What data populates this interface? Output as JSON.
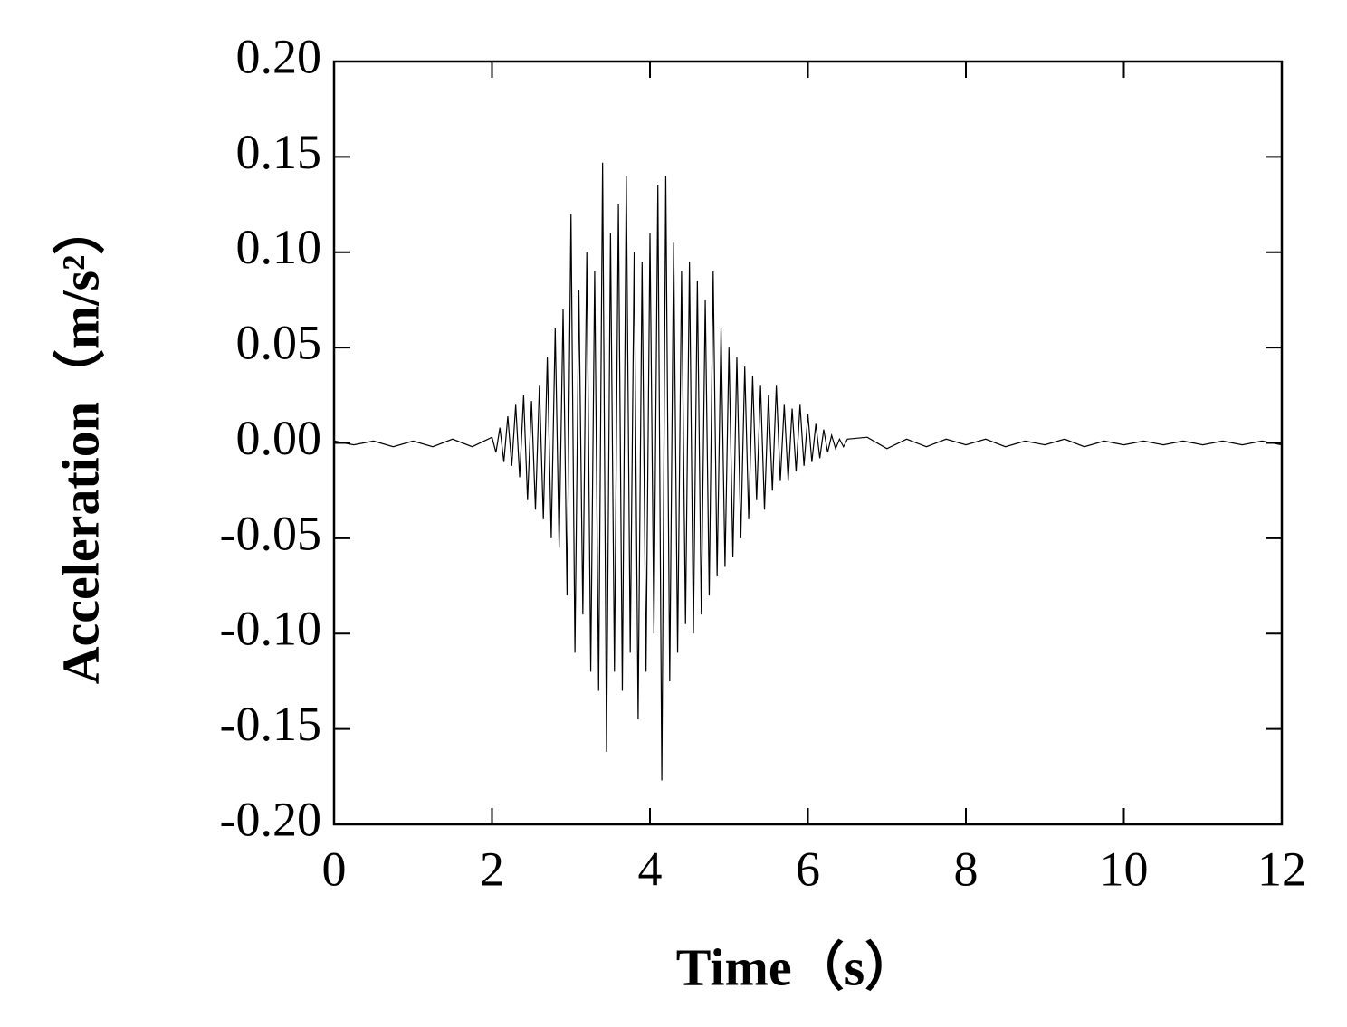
{
  "chart_data": {
    "type": "line",
    "xlabel": "Time（s）",
    "ylabel": "Acceleration（m/s²）",
    "x": [
      0,
      0.25,
      0.5,
      0.75,
      1,
      1.25,
      1.5,
      1.75,
      2,
      2.05,
      2.1,
      2.15,
      2.2,
      2.25,
      2.3,
      2.35,
      2.4,
      2.45,
      2.5,
      2.55,
      2.6,
      2.65,
      2.7,
      2.75,
      2.8,
      2.85,
      2.9,
      2.95,
      3,
      3.05,
      3.1,
      3.15,
      3.2,
      3.25,
      3.3,
      3.35,
      3.4,
      3.45,
      3.5,
      3.55,
      3.6,
      3.65,
      3.7,
      3.75,
      3.8,
      3.85,
      3.9,
      3.95,
      4,
      4.05,
      4.1,
      4.15,
      4.2,
      4.25,
      4.3,
      4.35,
      4.4,
      4.45,
      4.5,
      4.55,
      4.6,
      4.65,
      4.7,
      4.75,
      4.8,
      4.85,
      4.9,
      4.95,
      5,
      5.05,
      5.1,
      5.15,
      5.2,
      5.25,
      5.3,
      5.35,
      5.4,
      5.45,
      5.5,
      5.55,
      5.6,
      5.65,
      5.7,
      5.75,
      5.8,
      5.85,
      5.9,
      5.95,
      6,
      6.05,
      6.1,
      6.15,
      6.2,
      6.25,
      6.3,
      6.35,
      6.4,
      6.45,
      6.5,
      6.75,
      7,
      7.25,
      7.5,
      7.75,
      8,
      8.25,
      8.5,
      8.75,
      9,
      9.25,
      9.5,
      9.75,
      10,
      10.25,
      10.5,
      10.75,
      11,
      11.25,
      11.5,
      11.75,
      12
    ],
    "series": [
      {
        "color": "#000000",
        "values": [
          0.001,
          -0.001,
          0.001,
          -0.002,
          0.001,
          -0.002,
          0.002,
          -0.002,
          0.003,
          -0.005,
          0.008,
          -0.01,
          0.014,
          -0.012,
          0.02,
          -0.018,
          0.025,
          -0.03,
          0.022,
          -0.035,
          0.03,
          -0.04,
          0.045,
          -0.05,
          0.06,
          -0.055,
          0.07,
          -0.08,
          0.12,
          -0.11,
          0.08,
          -0.09,
          0.1,
          -0.12,
          0.09,
          -0.13,
          0.147,
          -0.162,
          0.11,
          -0.12,
          0.125,
          -0.13,
          0.14,
          -0.11,
          0.1,
          -0.145,
          0.095,
          -0.12,
          0.11,
          -0.1,
          0.135,
          -0.177,
          0.14,
          -0.125,
          0.105,
          -0.11,
          0.09,
          -0.095,
          0.095,
          -0.1,
          0.085,
          -0.09,
          0.075,
          -0.08,
          0.09,
          -0.07,
          0.06,
          -0.065,
          0.05,
          -0.06,
          0.045,
          -0.05,
          0.04,
          -0.04,
          0.035,
          -0.03,
          0.03,
          -0.035,
          0.025,
          -0.025,
          0.03,
          -0.02,
          0.02,
          -0.02,
          0.018,
          -0.015,
          0.02,
          -0.012,
          0.015,
          -0.01,
          0.01,
          -0.008,
          0.007,
          -0.005,
          0.004,
          -0.003,
          0.002,
          -0.002,
          0.002,
          0.003,
          -0.003,
          0.002,
          -0.002,
          0.002,
          -0.001,
          0.002,
          -0.002,
          0.001,
          -0.001,
          0.002,
          -0.002,
          0.001,
          -0.001,
          0.001,
          -0.001,
          0.001,
          -0.001,
          0.001,
          -0.001,
          0.001,
          -0.001
        ]
      }
    ],
    "xlim": [
      0,
      12
    ],
    "xticks": [
      0,
      2,
      4,
      6,
      8,
      10,
      12
    ],
    "ylim": [
      -0.2,
      0.2
    ],
    "yticks": [
      {
        "value": -0.2,
        "label": "-0.20"
      },
      {
        "value": -0.15,
        "label": "-0.15"
      },
      {
        "value": -0.1,
        "label": "-0.10"
      },
      {
        "value": -0.05,
        "label": "-0.05"
      },
      {
        "value": 0,
        "label": "0.00"
      },
      {
        "value": 0.05,
        "label": "0.05"
      },
      {
        "value": 0.1,
        "label": "0.10"
      },
      {
        "value": 0.15,
        "label": "0.15"
      },
      {
        "value": 0.2,
        "label": "0.20"
      }
    ],
    "grid": false
  }
}
